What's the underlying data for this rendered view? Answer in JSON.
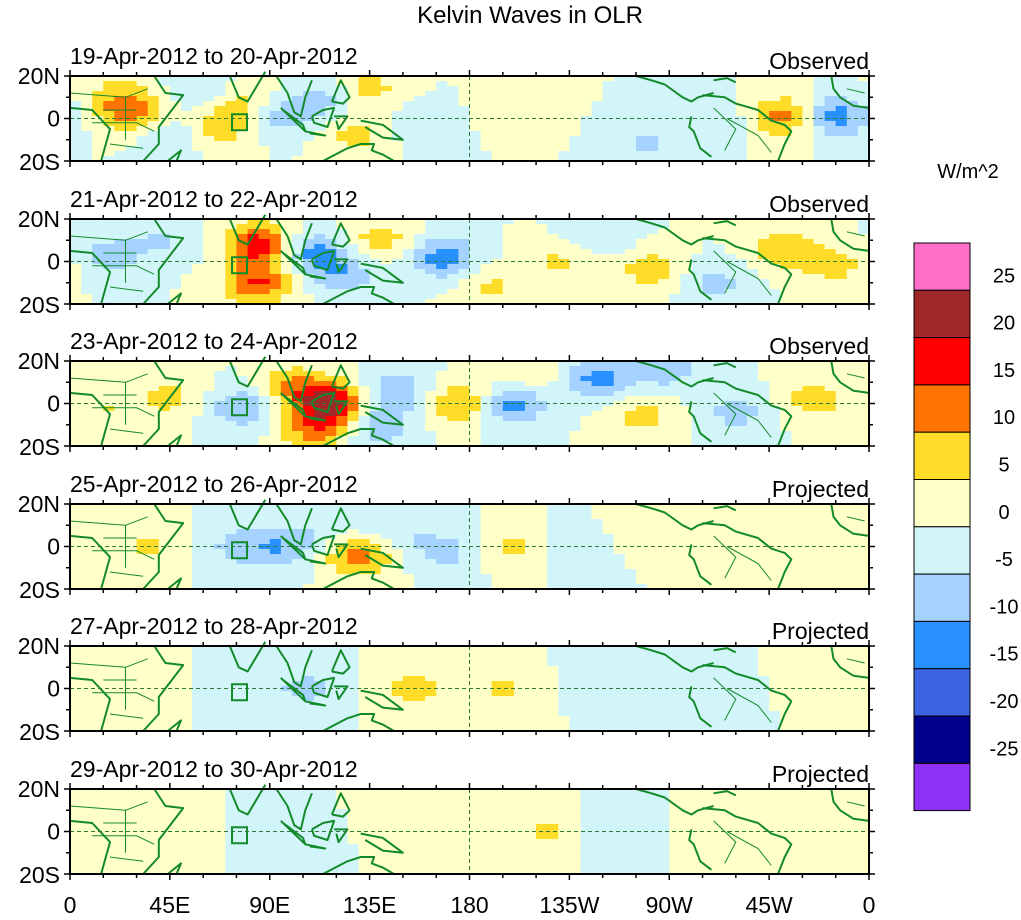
{
  "chart_data": {
    "type": "heatmap",
    "title": "Kelvin Waves in OLR",
    "x_tick_labels": [
      "0",
      "45E",
      "90E",
      "135E",
      "180",
      "135W",
      "90W",
      "45W",
      "0"
    ],
    "x_ticks_deg": [
      0,
      45,
      90,
      135,
      180,
      225,
      270,
      315,
      360
    ],
    "y_tick_labels": [
      "20N",
      "0",
      "20S"
    ],
    "ylim": [
      -20,
      20
    ],
    "colorbar": {
      "units": "W/m^2",
      "levels": [
        25,
        20,
        15,
        10,
        5,
        0,
        -5,
        -10,
        -15,
        -20,
        -25
      ],
      "colors": [
        "#ff6ec8",
        "#a02828",
        "#ff0000",
        "#ff7300",
        "#ffdc28",
        "#ffffc8",
        "#d2f5fa",
        "#a5d2ff",
        "#2891ff",
        "#3c64e1",
        "#00008c",
        "#8c32f5"
      ]
    },
    "panels": [
      {
        "date_range": "19-Apr-2012 to 20-Apr-2012",
        "status": "Observed",
        "anomalies": [
          {
            "lon": 28,
            "lat": 3,
            "v": 12
          },
          {
            "lon": 20,
            "lat": 12,
            "v": 5
          },
          {
            "lon": 45,
            "lat": -8,
            "v": -5
          },
          {
            "lon": 60,
            "lat": 14,
            "v": -6
          },
          {
            "lon": 68,
            "lat": -4,
            "v": 8
          },
          {
            "lon": 80,
            "lat": 8,
            "v": 8
          },
          {
            "lon": 95,
            "lat": 2,
            "v": -9
          },
          {
            "lon": 118,
            "lat": 10,
            "v": -8
          },
          {
            "lon": 132,
            "lat": 14,
            "v": 9
          },
          {
            "lon": 130,
            "lat": -8,
            "v": 7
          },
          {
            "lon": 160,
            "lat": -4,
            "v": -5
          },
          {
            "lon": 200,
            "lat": 3,
            "v": 4
          },
          {
            "lon": 260,
            "lat": -12,
            "v": -6
          },
          {
            "lon": 292,
            "lat": -1,
            "v": -4
          },
          {
            "lon": 322,
            "lat": 1,
            "v": 12
          },
          {
            "lon": 345,
            "lat": 1,
            "v": -13
          }
        ]
      },
      {
        "date_range": "21-Apr-2012 to 22-Apr-2012",
        "status": "Observed",
        "anomalies": [
          {
            "lon": 18,
            "lat": 3,
            "v": -7
          },
          {
            "lon": 42,
            "lat": 10,
            "v": -5
          },
          {
            "lon": 85,
            "lat": 8,
            "v": 18
          },
          {
            "lon": 85,
            "lat": -10,
            "v": 15
          },
          {
            "lon": 110,
            "lat": 4,
            "v": -12
          },
          {
            "lon": 124,
            "lat": -6,
            "v": -8
          },
          {
            "lon": 140,
            "lat": 10,
            "v": 8
          },
          {
            "lon": 168,
            "lat": 2,
            "v": -13
          },
          {
            "lon": 190,
            "lat": -12,
            "v": 6
          },
          {
            "lon": 220,
            "lat": 0,
            "v": 6
          },
          {
            "lon": 238,
            "lat": 12,
            "v": -5
          },
          {
            "lon": 262,
            "lat": -4,
            "v": 8
          },
          {
            "lon": 290,
            "lat": -10,
            "v": -7
          },
          {
            "lon": 322,
            "lat": 6,
            "v": 9
          },
          {
            "lon": 345,
            "lat": -2,
            "v": 7
          }
        ]
      },
      {
        "date_range": "23-Apr-2012 to 24-Apr-2012",
        "status": "Observed",
        "anomalies": [
          {
            "lon": 15,
            "lat": -2,
            "v": 5
          },
          {
            "lon": 45,
            "lat": 3,
            "v": 7
          },
          {
            "lon": 78,
            "lat": -2,
            "v": -10
          },
          {
            "lon": 100,
            "lat": 8,
            "v": 10
          },
          {
            "lon": 118,
            "lat": 0,
            "v": 22
          },
          {
            "lon": 110,
            "lat": -12,
            "v": 12
          },
          {
            "lon": 138,
            "lat": -10,
            "v": -9
          },
          {
            "lon": 146,
            "lat": 6,
            "v": -10
          },
          {
            "lon": 178,
            "lat": 0,
            "v": 12
          },
          {
            "lon": 198,
            "lat": 0,
            "v": -14
          },
          {
            "lon": 205,
            "lat": 14,
            "v": 6
          },
          {
            "lon": 238,
            "lat": 12,
            "v": -12
          },
          {
            "lon": 258,
            "lat": -6,
            "v": 7
          },
          {
            "lon": 268,
            "lat": 16,
            "v": -8
          },
          {
            "lon": 300,
            "lat": -4,
            "v": -7
          },
          {
            "lon": 335,
            "lat": 2,
            "v": 8
          }
        ]
      },
      {
        "date_range": "25-Apr-2012 to 26-Apr-2012",
        "status": "Projected",
        "anomalies": [
          {
            "lon": 35,
            "lat": 0,
            "v": 6
          },
          {
            "lon": 75,
            "lat": 0,
            "v": -6
          },
          {
            "lon": 95,
            "lat": 0,
            "v": -9
          },
          {
            "lon": 118,
            "lat": 6,
            "v": -5
          },
          {
            "lon": 130,
            "lat": -3,
            "v": 15
          },
          {
            "lon": 145,
            "lat": 6,
            "v": -6
          },
          {
            "lon": 170,
            "lat": -2,
            "v": -7
          },
          {
            "lon": 200,
            "lat": 0,
            "v": 6
          },
          {
            "lon": 228,
            "lat": 0,
            "v": -5
          },
          {
            "lon": 258,
            "lat": 8,
            "v": 5
          },
          {
            "lon": 290,
            "lat": 4,
            "v": 4
          },
          {
            "lon": 330,
            "lat": 0,
            "v": 5
          }
        ]
      },
      {
        "date_range": "27-Apr-2012 to 28-Apr-2012",
        "status": "Projected",
        "anomalies": [
          {
            "lon": 30,
            "lat": 0,
            "v": 3
          },
          {
            "lon": 85,
            "lat": 0,
            "v": -4
          },
          {
            "lon": 110,
            "lat": 0,
            "v": -6
          },
          {
            "lon": 155,
            "lat": 0,
            "v": 7
          },
          {
            "lon": 195,
            "lat": 0,
            "v": 6
          },
          {
            "lon": 240,
            "lat": 4,
            "v": -3
          },
          {
            "lon": 300,
            "lat": -4,
            "v": -3
          },
          {
            "lon": 330,
            "lat": 0,
            "v": 3
          }
        ]
      },
      {
        "date_range": "29-Apr-2012 to 30-Apr-2012",
        "status": "Projected",
        "anomalies": [
          {
            "lon": 40,
            "lat": 0,
            "v": 3
          },
          {
            "lon": 100,
            "lat": 0,
            "v": -3
          },
          {
            "lon": 150,
            "lat": 6,
            "v": 3
          },
          {
            "lon": 215,
            "lat": 0,
            "v": 6
          },
          {
            "lon": 240,
            "lat": 0,
            "v": -3
          },
          {
            "lon": 300,
            "lat": 0,
            "v": 3
          }
        ]
      }
    ]
  }
}
